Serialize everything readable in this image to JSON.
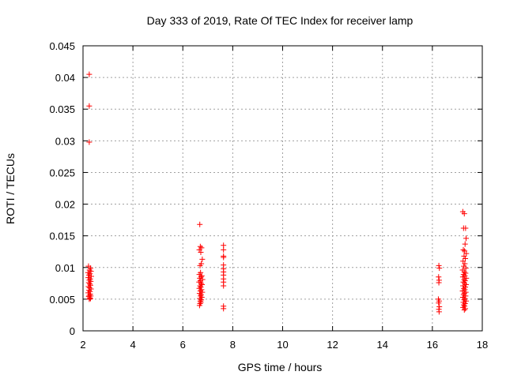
{
  "chart_data": {
    "type": "scatter",
    "title": "Day 333 of 2019, Rate Of TEC Index for receiver lamp",
    "xlabel": "GPS time / hours",
    "ylabel": "ROTI / TECUs",
    "xlim": [
      2,
      18
    ],
    "ylim": [
      0,
      0.045
    ],
    "xticks": [
      2,
      4,
      6,
      8,
      10,
      12,
      14,
      16,
      18
    ],
    "xtick_labels": [
      "2",
      "4",
      "6",
      "8",
      "10",
      "12",
      "14",
      "16",
      "18"
    ],
    "yticks": [
      0,
      0.005,
      0.01,
      0.015,
      0.02,
      0.025,
      0.03,
      0.035,
      0.04,
      0.045
    ],
    "ytick_labels": [
      "0",
      "0.005",
      "0.01",
      "0.015",
      "0.02",
      "0.025",
      "0.03",
      "0.035",
      "0.04",
      "0.045"
    ],
    "grid": true,
    "marker": "+",
    "color": "#ff0000",
    "series": [
      {
        "name": "ROTI",
        "points": [
          [
            2.25,
            0.0405
          ],
          [
            2.25,
            0.0355
          ],
          [
            2.25,
            0.0298
          ],
          [
            2.22,
            0.0102
          ],
          [
            2.3,
            0.0099
          ],
          [
            2.26,
            0.0096
          ],
          [
            2.32,
            0.0094
          ],
          [
            2.2,
            0.0092
          ],
          [
            2.28,
            0.009
          ],
          [
            2.24,
            0.0088
          ],
          [
            2.33,
            0.0086
          ],
          [
            2.21,
            0.0084
          ],
          [
            2.29,
            0.0082
          ],
          [
            2.25,
            0.008
          ],
          [
            2.31,
            0.0078
          ],
          [
            2.23,
            0.0076
          ],
          [
            2.27,
            0.0074
          ],
          [
            2.3,
            0.0072
          ],
          [
            2.22,
            0.007
          ],
          [
            2.26,
            0.0068
          ],
          [
            2.32,
            0.0066
          ],
          [
            2.24,
            0.0064
          ],
          [
            2.28,
            0.0062
          ],
          [
            2.21,
            0.006
          ],
          [
            2.29,
            0.0058
          ],
          [
            2.25,
            0.0056
          ],
          [
            2.31,
            0.0055
          ],
          [
            2.23,
            0.0054
          ],
          [
            2.27,
            0.0052
          ],
          [
            2.3,
            0.0051
          ],
          [
            2.25,
            0.005
          ],
          [
            6.68,
            0.0168
          ],
          [
            6.7,
            0.0133
          ],
          [
            6.75,
            0.0131
          ],
          [
            6.66,
            0.0128
          ],
          [
            6.72,
            0.0124
          ],
          [
            6.78,
            0.0113
          ],
          [
            6.74,
            0.0106
          ],
          [
            6.69,
            0.0103
          ],
          [
            6.71,
            0.0092
          ],
          [
            6.66,
            0.0089
          ],
          [
            6.76,
            0.0087
          ],
          [
            6.73,
            0.0085
          ],
          [
            6.68,
            0.0083
          ],
          [
            6.79,
            0.0081
          ],
          [
            6.7,
            0.0079
          ],
          [
            6.65,
            0.0077
          ],
          [
            6.74,
            0.0075
          ],
          [
            6.77,
            0.0073
          ],
          [
            6.69,
            0.0071
          ],
          [
            6.72,
            0.0069
          ],
          [
            6.66,
            0.0067
          ],
          [
            6.75,
            0.0065
          ],
          [
            6.7,
            0.0063
          ],
          [
            6.78,
            0.0061
          ],
          [
            6.67,
            0.0059
          ],
          [
            6.73,
            0.0057
          ],
          [
            6.71,
            0.0055
          ],
          [
            6.76,
            0.0053
          ],
          [
            6.68,
            0.0051
          ],
          [
            6.74,
            0.0049
          ],
          [
            6.7,
            0.0047
          ],
          [
            6.72,
            0.0045
          ],
          [
            6.69,
            0.0043
          ],
          [
            6.67,
            0.004
          ],
          [
            7.63,
            0.0135
          ],
          [
            7.63,
            0.0128
          ],
          [
            7.63,
            0.0118
          ],
          [
            7.63,
            0.0116
          ],
          [
            7.63,
            0.0104
          ],
          [
            7.63,
            0.0098
          ],
          [
            7.63,
            0.0093
          ],
          [
            7.63,
            0.0088
          ],
          [
            7.63,
            0.0082
          ],
          [
            7.63,
            0.0077
          ],
          [
            7.63,
            0.0071
          ],
          [
            7.63,
            0.0039
          ],
          [
            7.63,
            0.0035
          ],
          [
            16.26,
            0.0103
          ],
          [
            16.28,
            0.0099
          ],
          [
            16.25,
            0.0085
          ],
          [
            16.27,
            0.008
          ],
          [
            16.26,
            0.0076
          ],
          [
            16.24,
            0.005
          ],
          [
            16.27,
            0.0047
          ],
          [
            16.25,
            0.0044
          ],
          [
            16.28,
            0.0038
          ],
          [
            16.26,
            0.0034
          ],
          [
            16.27,
            0.003
          ],
          [
            17.22,
            0.0188
          ],
          [
            17.28,
            0.0185
          ],
          [
            17.25,
            0.0162
          ],
          [
            17.33,
            0.0162
          ],
          [
            17.35,
            0.0146
          ],
          [
            17.31,
            0.0137
          ],
          [
            17.24,
            0.0128
          ],
          [
            17.29,
            0.0126
          ],
          [
            17.36,
            0.0122
          ],
          [
            17.27,
            0.0118
          ],
          [
            17.32,
            0.0114
          ],
          [
            17.23,
            0.011
          ],
          [
            17.3,
            0.0106
          ],
          [
            17.26,
            0.0102
          ],
          [
            17.34,
            0.0099
          ],
          [
            17.21,
            0.0096
          ],
          [
            17.28,
            0.0093
          ],
          [
            17.33,
            0.0091
          ],
          [
            17.25,
            0.0089
          ],
          [
            17.3,
            0.0087
          ],
          [
            17.22,
            0.0085
          ],
          [
            17.36,
            0.0083
          ],
          [
            17.27,
            0.0081
          ],
          [
            17.31,
            0.0079
          ],
          [
            17.24,
            0.0077
          ],
          [
            17.29,
            0.0075
          ],
          [
            17.35,
            0.0073
          ],
          [
            17.23,
            0.0071
          ],
          [
            17.32,
            0.0069
          ],
          [
            17.26,
            0.0067
          ],
          [
            17.3,
            0.0065
          ],
          [
            17.21,
            0.0063
          ],
          [
            17.34,
            0.0061
          ],
          [
            17.28,
            0.0059
          ],
          [
            17.25,
            0.0057
          ],
          [
            17.33,
            0.0055
          ],
          [
            17.22,
            0.0053
          ],
          [
            17.3,
            0.0051
          ],
          [
            17.27,
            0.0049
          ],
          [
            17.35,
            0.0047
          ],
          [
            17.24,
            0.0045
          ],
          [
            17.31,
            0.0043
          ],
          [
            17.26,
            0.0041
          ],
          [
            17.29,
            0.0039
          ],
          [
            17.23,
            0.0037
          ],
          [
            17.32,
            0.0035
          ],
          [
            17.28,
            0.0033
          ]
        ]
      }
    ]
  }
}
